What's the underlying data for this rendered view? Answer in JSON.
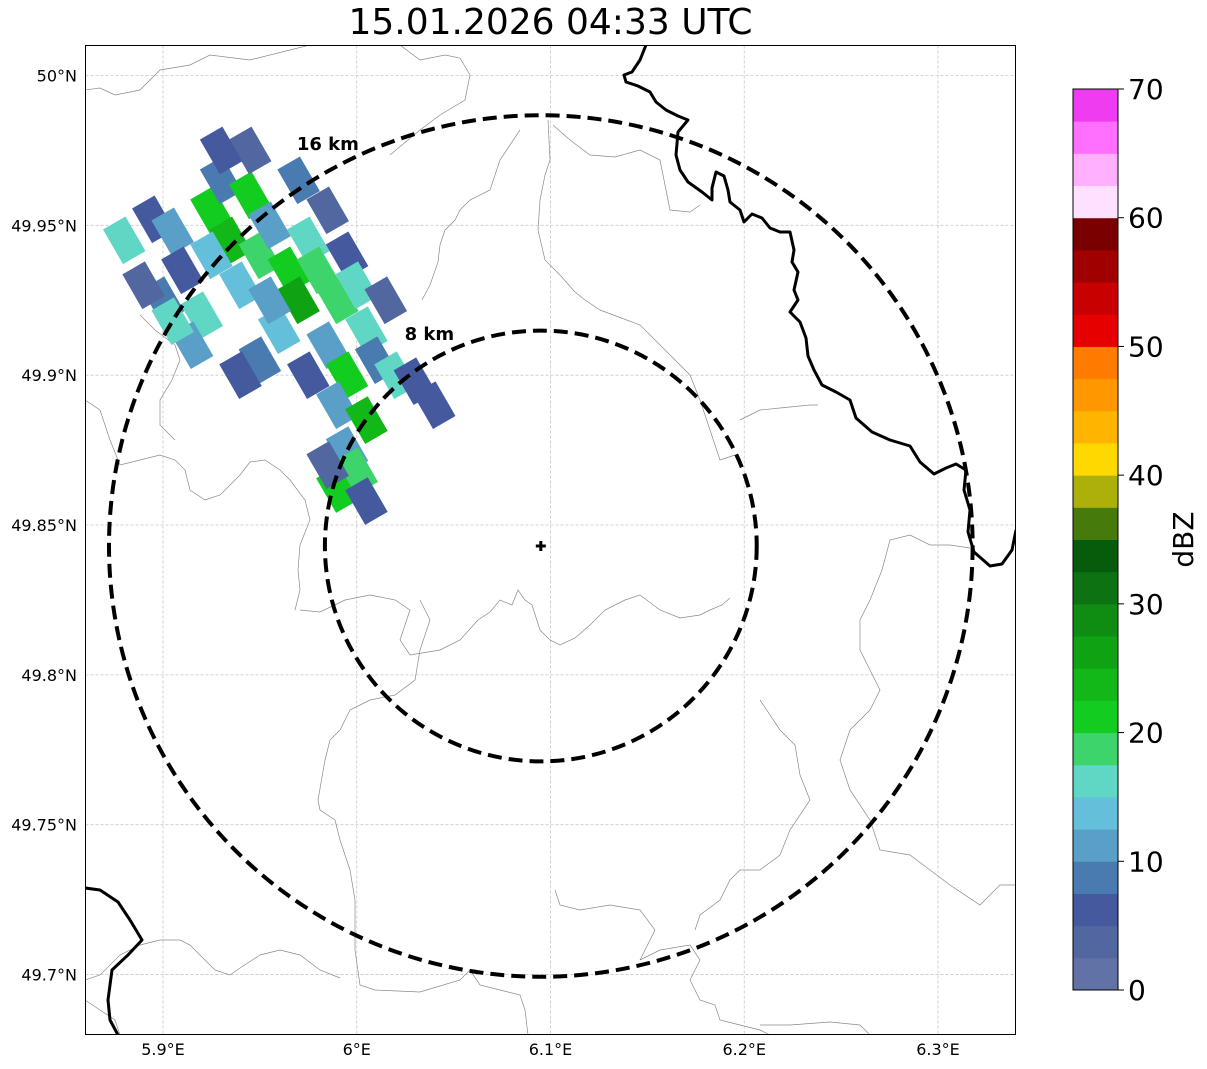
{
  "title": "15.01.2026 04:33 UTC",
  "map": {
    "lon_range": [
      5.86,
      6.34
    ],
    "lat_range": [
      49.68,
      50.01
    ],
    "lon_ticks": [
      {
        "value": 5.9,
        "label": "5.9°E"
      },
      {
        "value": 6.0,
        "label": "6°E"
      },
      {
        "value": 6.1,
        "label": "6.1°E"
      },
      {
        "value": 6.2,
        "label": "6.2°E"
      },
      {
        "value": 6.3,
        "label": "6.3°E"
      }
    ],
    "lat_ticks": [
      {
        "value": 50.0,
        "label": "50°N"
      },
      {
        "value": 49.95,
        "label": "49.95°N"
      },
      {
        "value": 49.9,
        "label": "49.9°N"
      },
      {
        "value": 49.85,
        "label": "49.85°N"
      },
      {
        "value": 49.8,
        "label": "49.8°N"
      },
      {
        "value": 49.75,
        "label": "49.75°N"
      },
      {
        "value": 49.7,
        "label": "49.7°N"
      }
    ],
    "gridlines": true,
    "radar_site": {
      "lon": 6.095,
      "lat": 49.843,
      "marker": "plus"
    },
    "range_rings": [
      {
        "radius_km": 8,
        "label": "8 km",
        "style": "dashed"
      },
      {
        "radius_km": 16,
        "label": "16 km",
        "style": "dashed"
      }
    ]
  },
  "colorbar": {
    "label": "dBZ",
    "min": 0,
    "max": 70,
    "tick_values": [
      0,
      10,
      20,
      30,
      40,
      50,
      60,
      70
    ],
    "tick_labels": [
      "0",
      "10",
      "20",
      "30",
      "40",
      "50",
      "60",
      "70"
    ],
    "colors": [
      "#6173a6",
      "#5266a0",
      "#44599e",
      "#4a7bb0",
      "#5a9fc8",
      "#64bfdb",
      "#60d6c4",
      "#3dd46b",
      "#13cc20",
      "#12b818",
      "#0fa314",
      "#0e8d12",
      "#0c7212",
      "#075c0c",
      "#467a0a",
      "#adb00a",
      "#ffd800",
      "#ffb400",
      "#ff9700",
      "#ff7c00",
      "#e60000",
      "#c80000",
      "#a00000",
      "#7a0000",
      "#ffe0ff",
      "#ffb0ff",
      "#ff70ff",
      "#f03cf0"
    ]
  },
  "chart_data": {
    "type": "heatmap",
    "title": "15.01.2026 04:33 UTC",
    "variable": "radar reflectivity",
    "unit": "dBZ",
    "value_range": [
      0,
      70
    ],
    "echo_region": "band of 0–25 dBZ echoes from about 5.87°E 49.96°N to 6.05°E 49.89°N, extending south to about 5.99°E 49.86°N",
    "max_reflectivity_dBZ": 25,
    "echo_cells": [
      {
        "lon": 5.88,
        "lat": 49.945,
        "dbz": 16
      },
      {
        "lon": 5.895,
        "lat": 49.952,
        "dbz": 6
      },
      {
        "lon": 5.905,
        "lat": 49.948,
        "dbz": 12
      },
      {
        "lon": 5.91,
        "lat": 49.935,
        "dbz": 5
      },
      {
        "lon": 5.9,
        "lat": 49.925,
        "dbz": 8
      },
      {
        "lon": 5.89,
        "lat": 49.93,
        "dbz": 4
      },
      {
        "lon": 5.925,
        "lat": 49.955,
        "dbz": 20
      },
      {
        "lon": 5.935,
        "lat": 49.945,
        "dbz": 23
      },
      {
        "lon": 5.93,
        "lat": 49.965,
        "dbz": 9
      },
      {
        "lon": 5.945,
        "lat": 49.96,
        "dbz": 22
      },
      {
        "lon": 5.92,
        "lat": 49.92,
        "dbz": 15
      },
      {
        "lon": 5.915,
        "lat": 49.91,
        "dbz": 10
      },
      {
        "lon": 5.905,
        "lat": 49.918,
        "dbz": 17
      },
      {
        "lon": 5.94,
        "lat": 49.93,
        "dbz": 13
      },
      {
        "lon": 5.95,
        "lat": 49.94,
        "dbz": 19
      },
      {
        "lon": 5.945,
        "lat": 49.975,
        "dbz": 3
      },
      {
        "lon": 5.93,
        "lat": 49.975,
        "dbz": 5
      },
      {
        "lon": 5.955,
        "lat": 49.95,
        "dbz": 12
      },
      {
        "lon": 5.965,
        "lat": 49.935,
        "dbz": 21
      },
      {
        "lon": 5.97,
        "lat": 49.925,
        "dbz": 25
      },
      {
        "lon": 5.96,
        "lat": 49.915,
        "dbz": 14
      },
      {
        "lon": 5.95,
        "lat": 49.905,
        "dbz": 9
      },
      {
        "lon": 5.94,
        "lat": 49.9,
        "dbz": 6
      },
      {
        "lon": 5.975,
        "lat": 49.945,
        "dbz": 16
      },
      {
        "lon": 5.985,
        "lat": 49.955,
        "dbz": 4
      },
      {
        "lon": 5.98,
        "lat": 49.935,
        "dbz": 19
      },
      {
        "lon": 5.99,
        "lat": 49.925,
        "dbz": 18
      },
      {
        "lon": 5.985,
        "lat": 49.91,
        "dbz": 12
      },
      {
        "lon": 5.975,
        "lat": 49.9,
        "dbz": 7
      },
      {
        "lon": 5.995,
        "lat": 49.94,
        "dbz": 5
      },
      {
        "lon": 6.0,
        "lat": 49.93,
        "dbz": 15
      },
      {
        "lon": 6.005,
        "lat": 49.915,
        "dbz": 16
      },
      {
        "lon": 5.995,
        "lat": 49.9,
        "dbz": 22
      },
      {
        "lon": 5.99,
        "lat": 49.89,
        "dbz": 10
      },
      {
        "lon": 6.01,
        "lat": 49.905,
        "dbz": 8
      },
      {
        "lon": 6.02,
        "lat": 49.9,
        "dbz": 17
      },
      {
        "lon": 6.03,
        "lat": 49.898,
        "dbz": 5
      },
      {
        "lon": 6.04,
        "lat": 49.89,
        "dbz": 6
      },
      {
        "lon": 6.015,
        "lat": 49.925,
        "dbz": 3
      },
      {
        "lon": 6.005,
        "lat": 49.885,
        "dbz": 24
      },
      {
        "lon": 5.995,
        "lat": 49.875,
        "dbz": 12
      },
      {
        "lon": 6.0,
        "lat": 49.868,
        "dbz": 18
      },
      {
        "lon": 5.99,
        "lat": 49.862,
        "dbz": 22
      },
      {
        "lon": 6.005,
        "lat": 49.858,
        "dbz": 6
      },
      {
        "lon": 5.985,
        "lat": 49.87,
        "dbz": 4
      },
      {
        "lon": 5.97,
        "lat": 49.965,
        "dbz": 8
      },
      {
        "lon": 5.955,
        "lat": 49.925,
        "dbz": 11
      },
      {
        "lon": 5.925,
        "lat": 49.94,
        "dbz": 14
      }
    ]
  }
}
